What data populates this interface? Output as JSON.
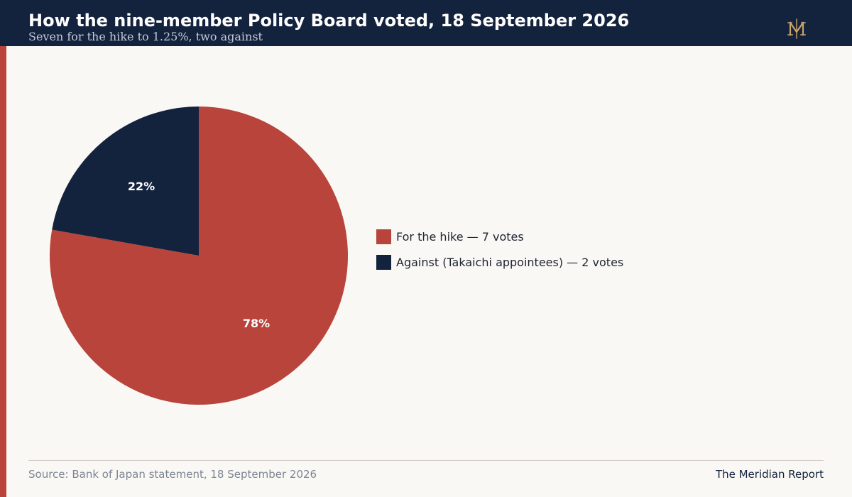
{
  "header": {
    "title": "How the nine-member Policy Board voted, 18 September 2026",
    "subtitle": "Seven for the hike to 1.25%, two against",
    "logo_icon": "meridian-monogram-icon"
  },
  "colors": {
    "header_bg": "#13223d",
    "accent": "#b8443c",
    "for": "#b8443c",
    "against": "#13223d",
    "logo_gold": "#c9a36a",
    "background": "#faf8f4"
  },
  "chart_data": {
    "type": "pie",
    "title": "How the nine-member Policy Board voted, 18 September 2026",
    "subtitle": "Seven for the hike to 1.25%, two against",
    "legend_position": "right",
    "slices": [
      {
        "label": "For the hike — 7 votes",
        "value": 7,
        "percent_label": "78%",
        "color": "#b8443c"
      },
      {
        "label": "Against (Takaichi appointees) — 2 votes",
        "value": 2,
        "percent_label": "22%",
        "color": "#13223d"
      }
    ]
  },
  "footer": {
    "source": "Source: Bank of Japan statement, 18 September 2026",
    "brand": "The Meridian Report"
  }
}
